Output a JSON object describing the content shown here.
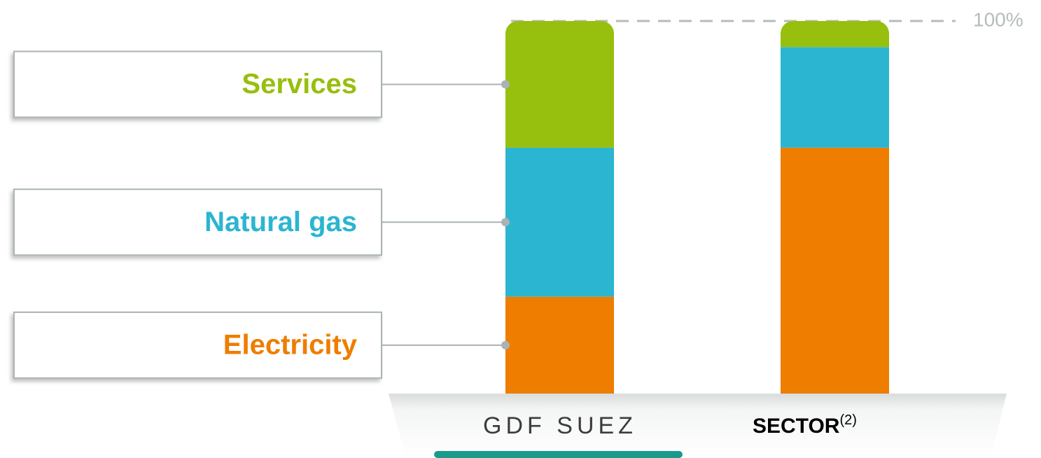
{
  "chart_data": {
    "type": "bar",
    "stacked": true,
    "categories": [
      "GDF SUEZ",
      "SECTOR"
    ],
    "sector_note": "(2)",
    "series": [
      {
        "name": "Electricity",
        "color": "#ee7d00",
        "values": [
          26,
          66
        ]
      },
      {
        "name": "Natural gas",
        "color": "#2bb5d1",
        "values": [
          40,
          27
        ]
      },
      {
        "name": "Services",
        "color": "#97bf0d",
        "values": [
          34,
          7
        ]
      }
    ],
    "ylim": [
      0,
      100
    ],
    "yticks": [
      {
        "value": 100,
        "label": "100%"
      }
    ],
    "grid": true
  }
}
